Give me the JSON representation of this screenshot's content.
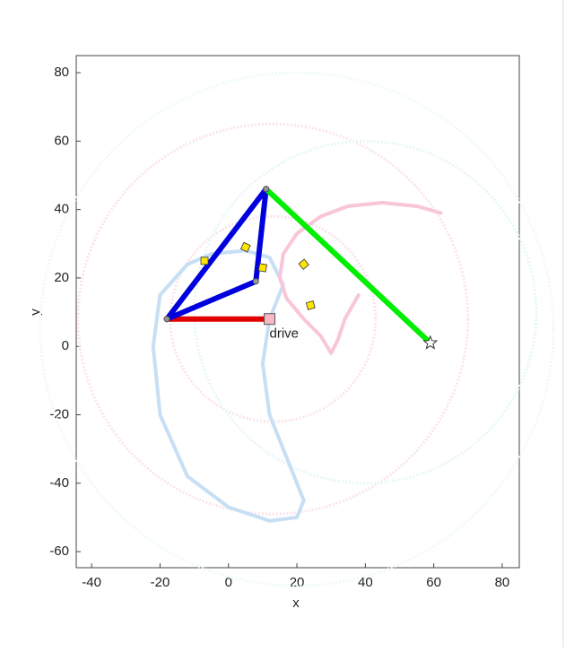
{
  "chart_data": {
    "type": "linkage",
    "xlabel": "x",
    "ylabel": "y",
    "xlim": [
      -44.5,
      85
    ],
    "ylim": [
      -64.7,
      85
    ],
    "xticks": [
      -40,
      -20,
      0,
      20,
      40,
      60,
      80
    ],
    "yticks": [
      -60,
      -40,
      -20,
      0,
      20,
      40,
      60,
      80
    ],
    "circles": [
      {
        "cx": 13,
        "cy": 8,
        "r": 57,
        "color": "#fbe3ec"
      },
      {
        "cx": 13,
        "cy": 8,
        "r": 30,
        "color": "#fbe3ec"
      },
      {
        "cx": 40,
        "cy": 10,
        "r": 50,
        "color": "#e6f6f8"
      },
      {
        "cx": 20,
        "cy": 5,
        "r": 75,
        "color": "#eef9fa"
      }
    ],
    "series": [
      {
        "color": "#c6dff5",
        "linewidth": 4,
        "x": [
          -5,
          5,
          12,
          16,
          12,
          10,
          12,
          18,
          22,
          20,
          12,
          0,
          -12,
          -20,
          -22,
          -20,
          -12,
          -5
        ],
        "y": [
          27,
          28,
          26,
          18,
          8,
          -5,
          -20,
          -35,
          -45,
          -50,
          -51,
          -47,
          -38,
          -20,
          0,
          15,
          24,
          27
        ]
      },
      {
        "color": "#f8c6d8",
        "linewidth": 4,
        "x": [
          62,
          55,
          45,
          35,
          27,
          20,
          16,
          15,
          17,
          22,
          27,
          30,
          32,
          34,
          38
        ],
        "y": [
          39,
          41,
          42,
          41,
          38,
          33,
          27,
          20,
          14,
          8,
          3,
          -2,
          2,
          8,
          15
        ]
      },
      {
        "color": "#e00000",
        "linewidth": 6,
        "x": [
          -18,
          12
        ],
        "y": [
          8,
          8
        ]
      },
      {
        "color": "#0000dd",
        "linewidth": 6,
        "x": [
          -18,
          11,
          8,
          -18
        ],
        "y": [
          8,
          46,
          19,
          8
        ]
      },
      {
        "color": "#00ee00",
        "linewidth": 6,
        "x": [
          11,
          59
        ],
        "y": [
          46,
          1
        ]
      }
    ],
    "markers": {
      "x": [
        -7,
        5,
        22,
        24,
        10
      ],
      "y": [
        25,
        29,
        24,
        12,
        23
      ],
      "color": "#ffe400"
    },
    "end_marker": {
      "x": 59,
      "y": 1
    },
    "annotation": {
      "text": "drive",
      "x": 12,
      "y": 8
    }
  }
}
